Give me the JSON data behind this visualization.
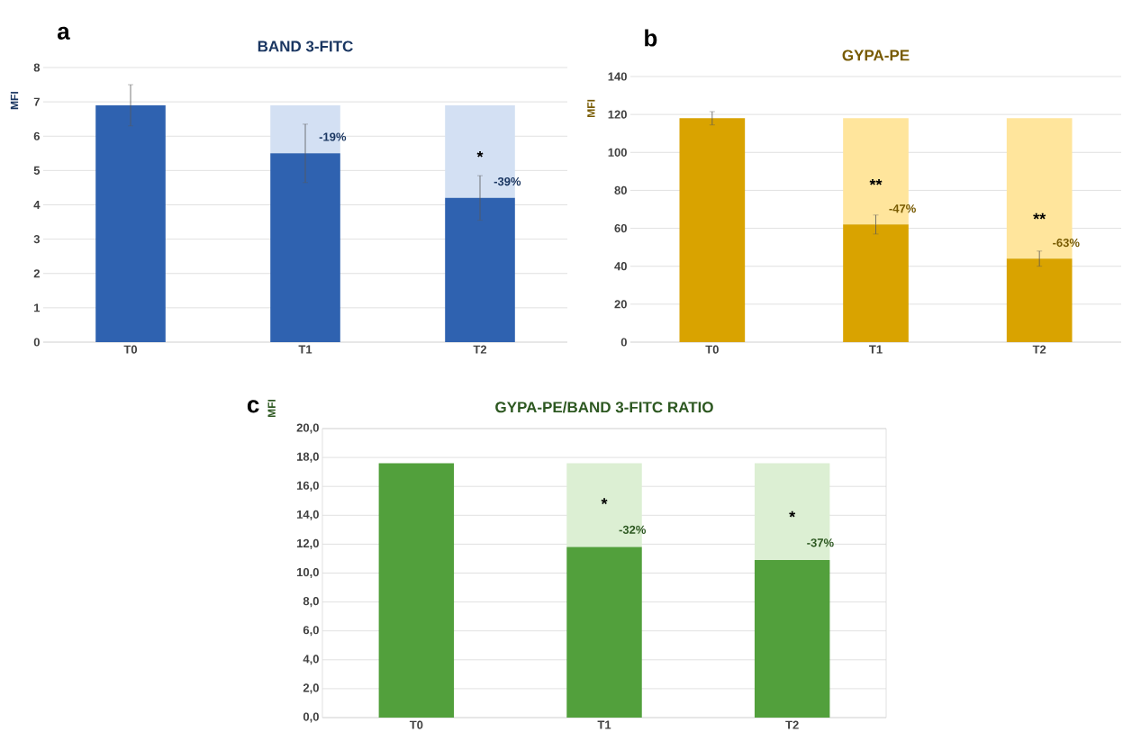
{
  "chart_data": [
    {
      "type": "bar",
      "title": "BAND 3-FITC",
      "ylabel": "MFI",
      "categories": [
        "T0",
        "T1",
        "T2"
      ],
      "stacked": true,
      "grid": "y",
      "series": [
        {
          "color": "#2f62b0",
          "values": [
            6.9,
            5.5,
            4.2
          ],
          "errors": [
            0.6,
            0.85,
            0.65
          ]
        },
        {
          "color": "#d3e0f3",
          "values": [
            null,
            1.4,
            2.7
          ]
        }
      ],
      "ylim": [
        0,
        8
      ],
      "yticks": [
        0,
        1,
        2,
        3,
        4,
        5,
        6,
        7,
        8
      ],
      "annotations": [
        "a",
        {
          "text": "-19%",
          "x": "T1",
          "y": 5.5
        },
        {
          "text": "*",
          "x": "T2",
          "y": 4.2
        },
        {
          "text": "-39%",
          "x": "T2",
          "y": 4.2
        }
      ]
    },
    {
      "type": "bar",
      "title": "GYPA-PE",
      "ylabel": "MFI",
      "categories": [
        "T0",
        "T1",
        "T2"
      ],
      "stacked": true,
      "grid": "y",
      "series": [
        {
          "color": "#d9a300",
          "values": [
            118,
            62,
            44
          ],
          "errors": [
            3.5,
            5,
            4
          ]
        },
        {
          "color": "#ffe59c",
          "values": [
            null,
            56,
            74
          ]
        }
      ],
      "ylim": [
        0,
        140
      ],
      "yticks": [
        0,
        20,
        40,
        60,
        80,
        100,
        120,
        140
      ],
      "annotations": [
        "b",
        {
          "text": "**",
          "x": "T1",
          "y": 62
        },
        {
          "text": "-47%",
          "x": "T1",
          "y": 62
        },
        {
          "text": "**",
          "x": "T2",
          "y": 44
        },
        {
          "text": "-63%",
          "x": "T2",
          "y": 44
        }
      ]
    },
    {
      "type": "bar",
      "title": "GYPA-PE/BAND 3-FITC RATIO",
      "ylabel": "MFI",
      "categories": [
        "T0",
        "T1",
        "T2"
      ],
      "stacked": true,
      "grid": "y",
      "series": [
        {
          "color": "#52a03c",
          "values": [
            17.6,
            11.8,
            10.9
          ]
        },
        {
          "color": "#dcefd3",
          "values": [
            null,
            5.8,
            6.7
          ]
        }
      ],
      "ylim": [
        0,
        20
      ],
      "yticks": [
        {
          "value": 0,
          "label": "0,0"
        },
        {
          "value": 2,
          "label": "2,0"
        },
        {
          "value": 4,
          "label": "4,0"
        },
        {
          "value": 6,
          "label": "6,0"
        },
        {
          "value": 8,
          "label": "8,0"
        },
        {
          "value": 10,
          "label": "10,0"
        },
        {
          "value": 12,
          "label": "12,0"
        },
        {
          "value": 14,
          "label": "14,0"
        },
        {
          "value": 16,
          "label": "16,0"
        },
        {
          "value": 18,
          "label": "18,0"
        },
        {
          "value": 20,
          "label": "20,0"
        }
      ],
      "annotations": [
        "c",
        {
          "text": "*",
          "x": "T1",
          "y": 11.8
        },
        {
          "text": "-32%",
          "x": "T1",
          "y": 11.8
        },
        {
          "text": "*",
          "x": "T2",
          "y": 10.9
        },
        {
          "text": "-37%",
          "x": "T2",
          "y": 10.9
        }
      ]
    }
  ]
}
